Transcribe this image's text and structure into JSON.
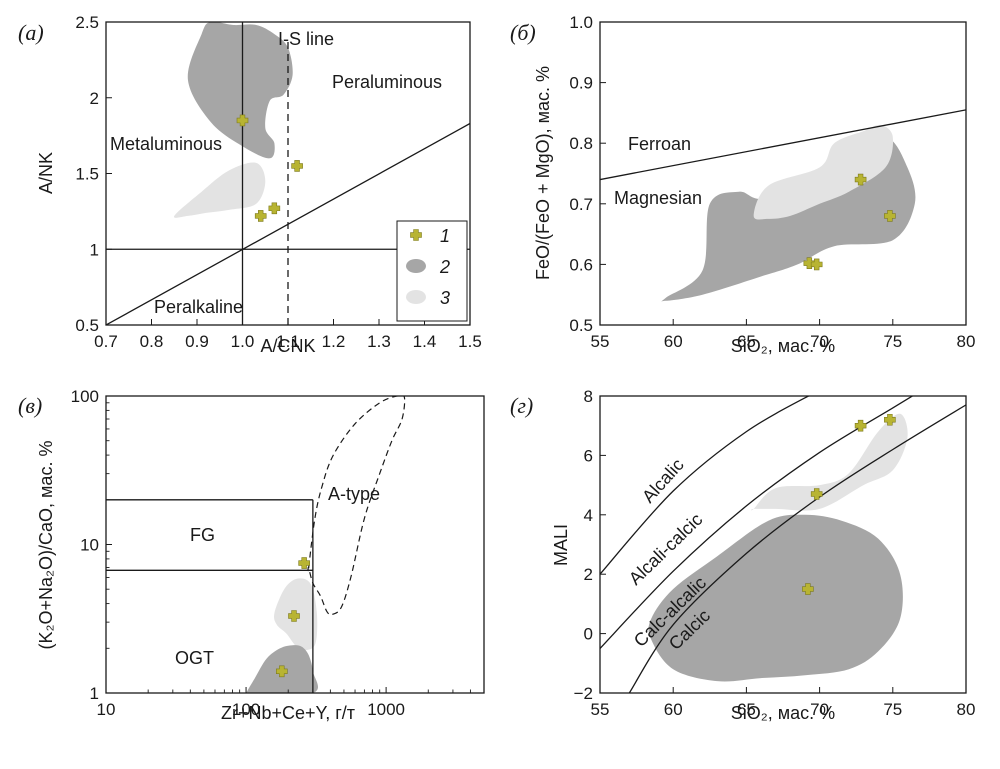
{
  "colors": {
    "field2": "#a6a6a6",
    "field3": "#e3e3e3",
    "cross": "#b8b432",
    "crossStroke": "#7d7a1e",
    "line": "#1a1a1a"
  },
  "legend": {
    "items": [
      "1",
      "2",
      "3"
    ]
  },
  "chart_data": [
    {
      "panel_label": "(а)",
      "type": "scatter",
      "xlabel": "A/CNK",
      "ylabel": "A/NK",
      "xlim": [
        0.7,
        1.5
      ],
      "ylim": [
        0.5,
        2.5
      ],
      "xticks": [
        "0.7",
        "0.8",
        "0.9",
        "1.0",
        "1.1",
        "1.2",
        "1.3",
        "1.4",
        "1.5"
      ],
      "yticks": [
        "0.5",
        "1",
        "1.5",
        "2",
        "2.5"
      ],
      "series": [
        {
          "name": "1",
          "x": [
            1.0,
            1.12,
            1.07,
            1.04
          ],
          "y": [
            1.85,
            1.55,
            1.27,
            1.22
          ]
        }
      ],
      "lines": [
        {
          "x": [
            1.0,
            1.0
          ],
          "y": [
            0.5,
            2.5
          ],
          "style": "solid"
        },
        {
          "x": [
            0.7,
            1.5
          ],
          "y": [
            1.0,
            1.0
          ],
          "style": "solid"
        },
        {
          "x": [
            0.7,
            1.5
          ],
          "y": [
            0.5,
            1.83
          ],
          "style": "solid"
        },
        {
          "x": [
            1.1,
            1.1
          ],
          "y": [
            0.5,
            2.4
          ],
          "style": "dashed"
        }
      ],
      "fields": [
        {
          "class": "2",
          "x": [
            0.91,
            0.88,
            0.93,
            1.0,
            1.06,
            1.07,
            1.05,
            1.06,
            1.09,
            1.11,
            1.1,
            1.07,
            1.03,
            0.98,
            0.93
          ],
          "y": [
            2.42,
            2.12,
            1.84,
            1.68,
            1.6,
            1.7,
            1.8,
            1.98,
            2.02,
            2.15,
            2.33,
            2.42,
            2.48,
            2.48,
            2.5
          ]
        },
        {
          "class": "3",
          "x": [
            0.85,
            0.91,
            0.97,
            1.03,
            1.05,
            1.03,
            0.97,
            0.92,
            0.88
          ],
          "y": [
            1.22,
            1.38,
            1.52,
            1.57,
            1.45,
            1.3,
            1.26,
            1.24,
            1.22
          ]
        }
      ],
      "annotations": [
        "I-S line",
        "Peraluminous",
        "Metaluminous",
        "Peralkaline"
      ]
    },
    {
      "panel_label": "(б)",
      "type": "scatter",
      "xlabel": "SiO₂, мас. %",
      "ylabel": "FeO/(FeO + MgO), мас. %",
      "xlim": [
        55,
        80
      ],
      "ylim": [
        0.5,
        1.0
      ],
      "xticks": [
        "55",
        "60",
        "65",
        "70",
        "75",
        "80"
      ],
      "yticks": [
        "0.5",
        "0.6",
        "0.7",
        "0.8",
        "0.9",
        "1.0"
      ],
      "series": [
        {
          "name": "1",
          "x": [
            69.3,
            69.8,
            72.8,
            74.8
          ],
          "y": [
            0.602,
            0.6,
            0.74,
            0.68
          ]
        }
      ],
      "lines": [
        {
          "x": [
            55,
            80
          ],
          "y": [
            0.74,
            0.855
          ],
          "style": "solid"
        }
      ],
      "fields": [
        {
          "class": "2",
          "x": [
            59.5,
            62,
            62.5,
            64.5,
            66.5,
            72,
            74.5,
            76,
            76.5,
            75,
            71,
            68.5,
            66,
            62,
            59.5
          ],
          "y": [
            0.545,
            0.59,
            0.7,
            0.72,
            0.71,
            0.77,
            0.81,
            0.76,
            0.7,
            0.64,
            0.63,
            0.6,
            0.58,
            0.55,
            0.54
          ]
        },
        {
          "class": "3",
          "x": [
            65.5,
            66.5,
            70,
            71,
            73,
            74.2,
            75,
            74.5,
            72,
            70,
            68,
            66.5
          ],
          "y": [
            0.68,
            0.73,
            0.76,
            0.8,
            0.82,
            0.83,
            0.81,
            0.76,
            0.72,
            0.7,
            0.68,
            0.675
          ]
        }
      ],
      "annotations": [
        "Ferroan",
        "Magnesian"
      ]
    },
    {
      "panel_label": "(в)",
      "type": "scatter",
      "xlabel": "Zr+Nb+Ce+Y, г/т",
      "ylabel": "(K₂O+Na₂O)/CaO, мас. %",
      "xscale": "log",
      "yscale": "log",
      "xlim": [
        10,
        5000
      ],
      "ylim": [
        1,
        100
      ],
      "xticks": [
        "10",
        "100",
        "1000"
      ],
      "yticks": [
        "1",
        "10",
        "100"
      ],
      "series": [
        {
          "name": "1",
          "x": [
            260,
            220,
            180
          ],
          "y": [
            7.5,
            3.3,
            1.4
          ]
        }
      ],
      "lines": [
        {
          "x": [
            10,
            300
          ],
          "y": [
            20,
            20
          ],
          "style": "solid"
        },
        {
          "x": [
            10,
            300
          ],
          "y": [
            6.7,
            6.7
          ],
          "style": "solid"
        },
        {
          "x": [
            300,
            300
          ],
          "y": [
            1,
            20
          ],
          "style": "solid"
        }
      ],
      "fields": [
        {
          "class": "3",
          "x": [
            160,
            190,
            235,
            290,
            320,
            315,
            275,
            230,
            195,
            165
          ],
          "y": [
            3.5,
            5.1,
            5.9,
            5.4,
            3.5,
            2.2,
            1.95,
            2.05,
            2.5,
            2.9
          ]
        },
        {
          "class": "2",
          "x": [
            100,
            115,
            140,
            175,
            215,
            250,
            280,
            300,
            300,
            100
          ],
          "y": [
            1.0,
            1.25,
            1.7,
            2.0,
            2.1,
            2.05,
            1.8,
            1.4,
            1.0,
            1.0
          ]
        },
        {
          "class": "dashed",
          "x": [
            280,
            310,
            350,
            420,
            600,
            900,
            1200,
            1350,
            1300,
            1100,
            900,
            700,
            560,
            480,
            420,
            380,
            340,
            300,
            280
          ],
          "y": [
            7,
            15,
            25,
            40,
            65,
            90,
            100,
            98,
            70,
            50,
            30,
            15,
            6,
            3.8,
            3.4,
            3.5,
            4.5,
            5.5,
            7
          ]
        }
      ],
      "annotations": [
        "FG",
        "A-type",
        "OGT"
      ]
    },
    {
      "panel_label": "(г)",
      "type": "scatter",
      "xlabel": "SiO₂, мас. %",
      "ylabel": "MALI",
      "xlim": [
        55,
        80
      ],
      "ylim": [
        -2,
        8
      ],
      "xticks": [
        "55",
        "60",
        "65",
        "70",
        "75",
        "80"
      ],
      "yticks": [
        "−2",
        "0",
        "2",
        "4",
        "6",
        "8"
      ],
      "series": [
        {
          "name": "1",
          "x": [
            69.2,
            69.8,
            72.8,
            74.8
          ],
          "y": [
            1.5,
            4.7,
            7.0,
            7.2
          ]
        }
      ],
      "lines": [
        {
          "x": [
            55,
            60,
            65,
            70,
            72
          ],
          "y": [
            2.0,
            4.8,
            6.8,
            8.2,
            8.7
          ],
          "style": "solid"
        },
        {
          "x": [
            55,
            60,
            65,
            70,
            75,
            77
          ],
          "y": [
            -0.5,
            2.1,
            4.3,
            6.1,
            7.6,
            8.2
          ],
          "style": "solid"
        },
        {
          "x": [
            57,
            60,
            65,
            70,
            75,
            80
          ],
          "y": [
            -2.0,
            0.3,
            2.7,
            4.6,
            6.2,
            7.7
          ],
          "style": "solid"
        }
      ],
      "fields": [
        {
          "class": "2",
          "x": [
            58.5,
            60,
            63,
            66.5,
            69,
            71.5,
            74,
            75.5,
            75.5,
            74,
            72,
            69,
            66,
            63,
            60,
            58.5
          ],
          "y": [
            0.5,
            1.5,
            2.6,
            3.8,
            4.0,
            3.8,
            3.2,
            2.0,
            0.5,
            -0.6,
            -1.2,
            -1.4,
            -1.5,
            -1.6,
            -1.2,
            -0.2
          ]
        },
        {
          "class": "3",
          "x": [
            65.5,
            67,
            70,
            72,
            74,
            75.5,
            76,
            75,
            73,
            70,
            67,
            65.5
          ],
          "y": [
            4.2,
            4.9,
            5.0,
            5.4,
            6.8,
            7.4,
            6.6,
            5.5,
            5.0,
            4.2,
            4.2,
            4.2
          ]
        }
      ],
      "annotations": [
        "Alcalic",
        "Alcali-calcic",
        "Calc-alcalic",
        "Calcic"
      ]
    }
  ]
}
